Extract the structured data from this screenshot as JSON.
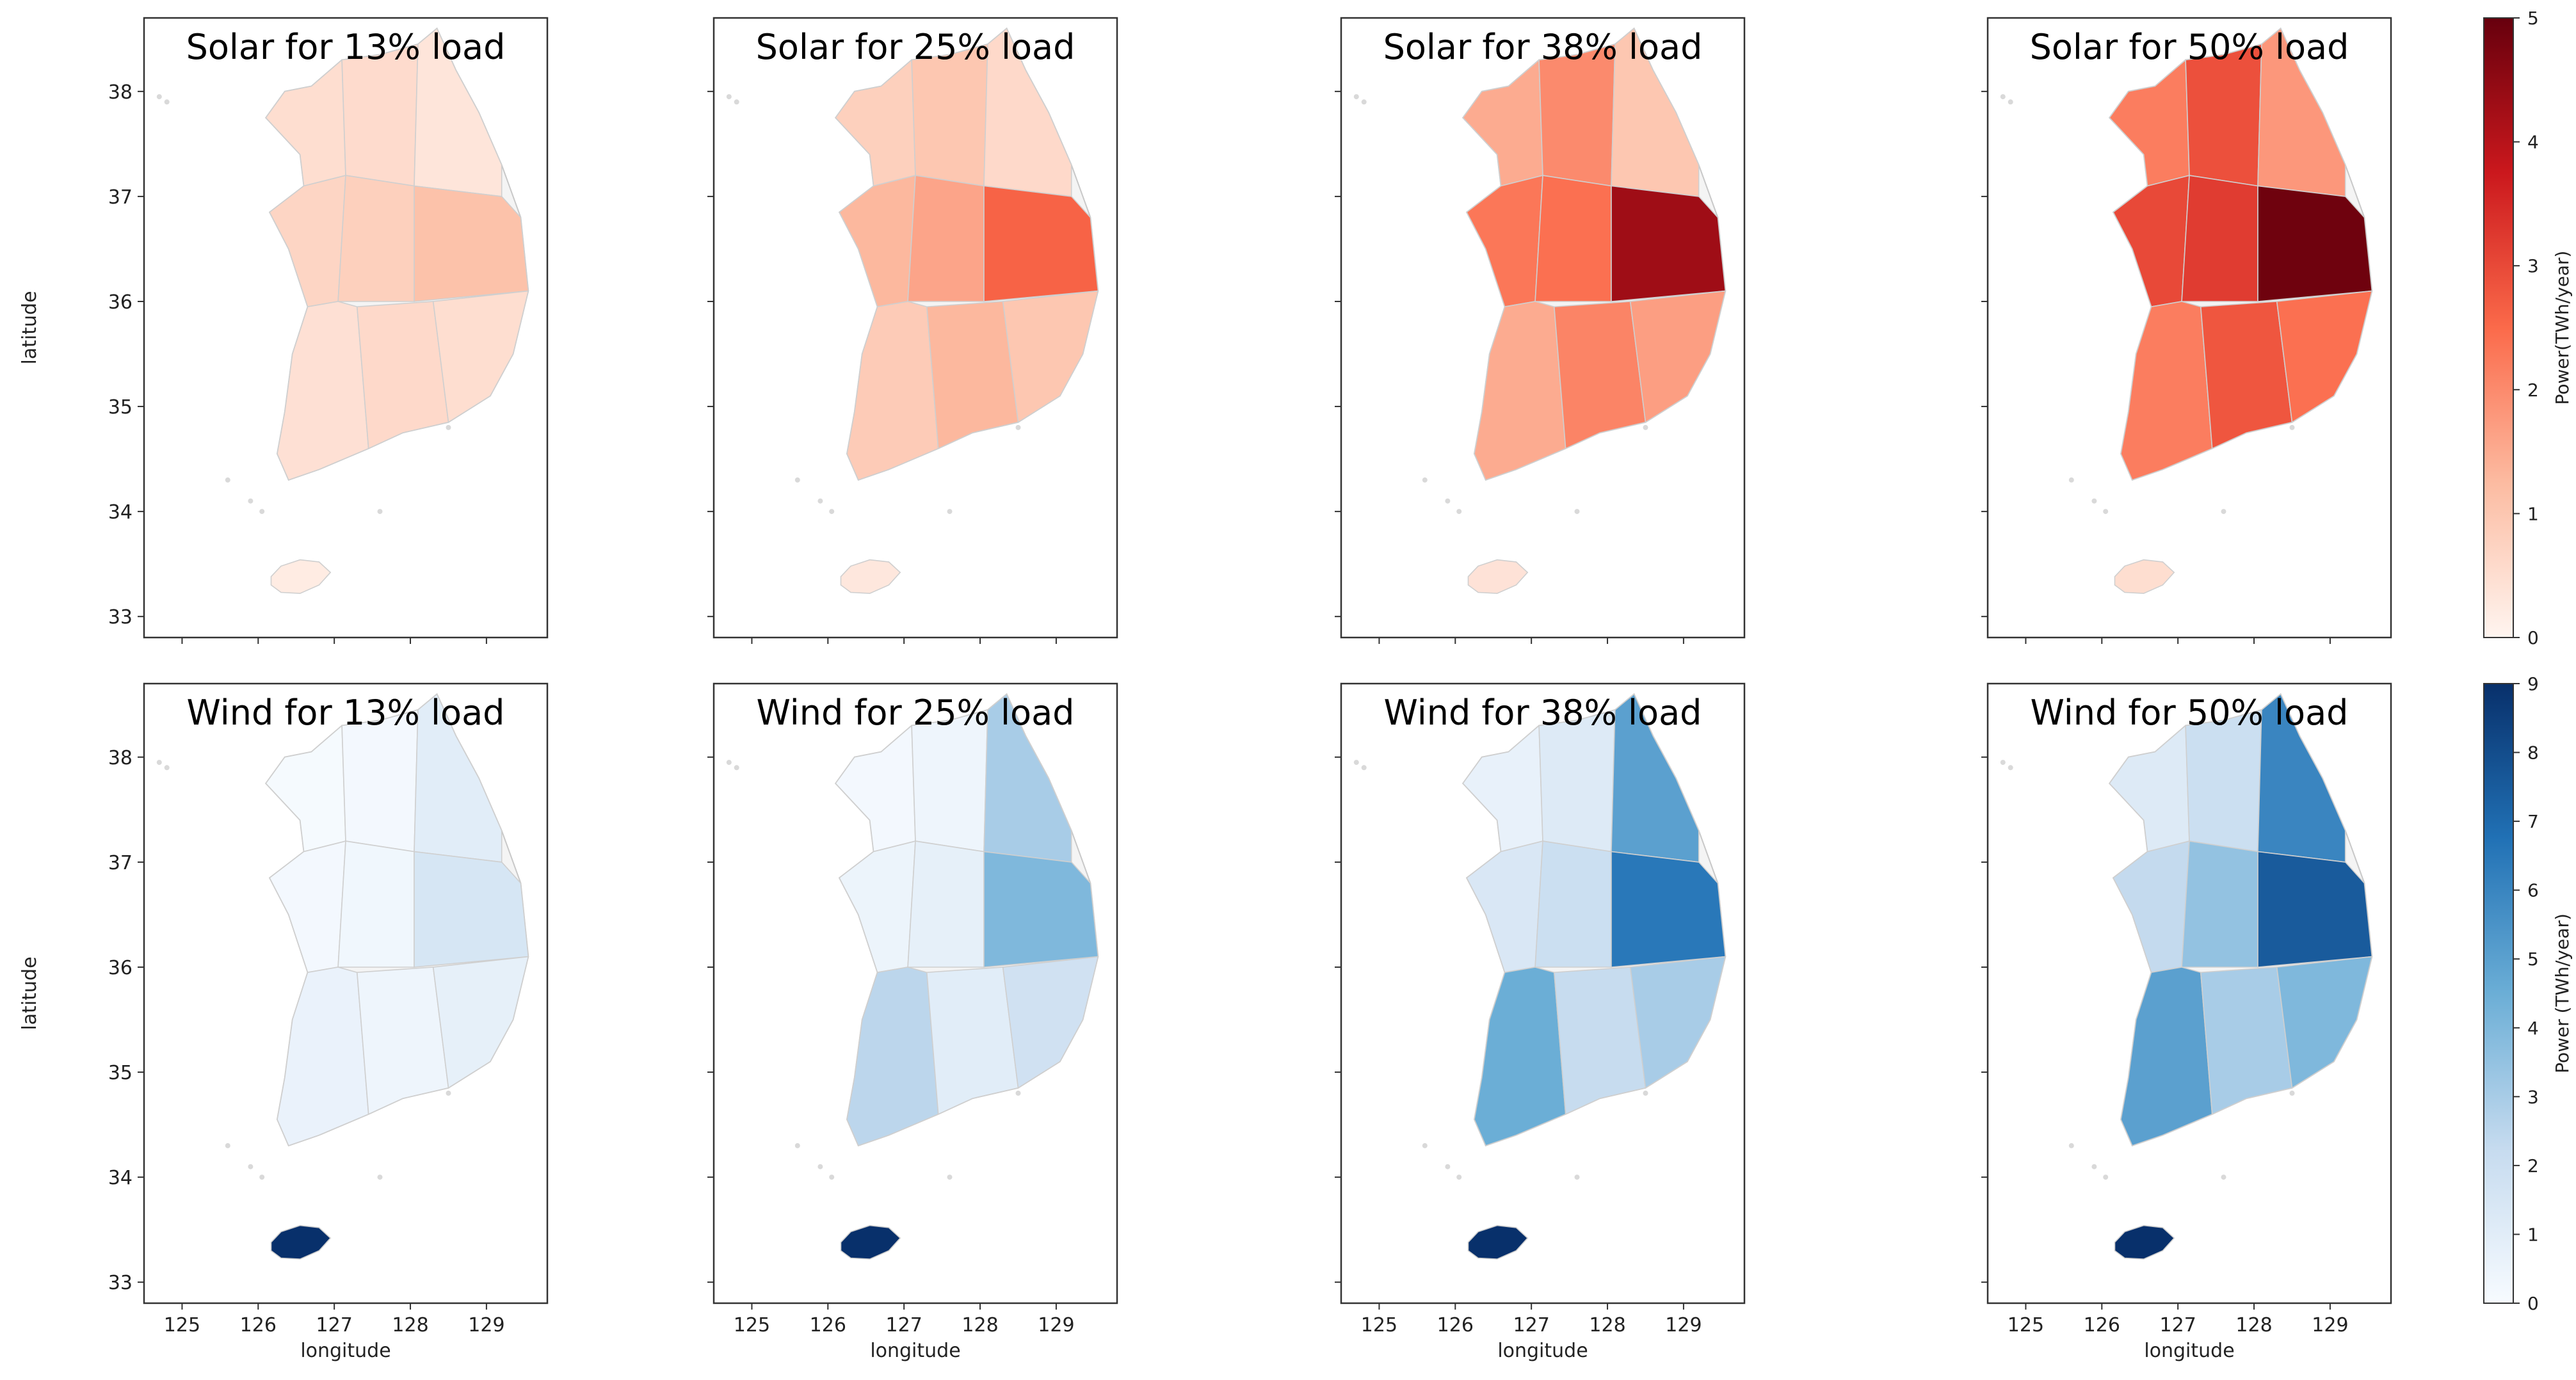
{
  "figure": {
    "rows": [
      {
        "variable": "solar",
        "colorbar": {
          "label": "Power(TWh/year)",
          "min": 0,
          "max": 5,
          "ticks": [
            "0",
            "1",
            "2",
            "3",
            "4",
            "5"
          ],
          "colors": [
            "#fff5f0",
            "#fcbba1",
            "#fb6a4a",
            "#cb181d",
            "#67000d"
          ]
        }
      },
      {
        "variable": "wind",
        "colorbar": {
          "label": "Power (TWh/year)",
          "min": 0,
          "max": 9,
          "ticks": [
            "0",
            "1",
            "2",
            "3",
            "4",
            "5",
            "6",
            "7",
            "8",
            "9"
          ],
          "colors": [
            "#f7fbff",
            "#c6dbef",
            "#6baed6",
            "#2171b5",
            "#08306b"
          ]
        }
      }
    ]
  },
  "chart_data": [
    {
      "type": "choropleth",
      "title": "Solar for 13% load",
      "ylabel": "latitude",
      "xlabel": "",
      "xlim": [
        124.5,
        129.8
      ],
      "ylim": [
        32.8,
        38.7
      ],
      "xticks": [
        "125",
        "126",
        "127",
        "128",
        "129"
      ],
      "yticks": [
        "33",
        "34",
        "35",
        "36",
        "37",
        "38"
      ],
      "regions": [
        {
          "name": "northwest",
          "lon": 126.8,
          "lat": 37.5,
          "value": 0.5
        },
        {
          "name": "north-central",
          "lon": 127.7,
          "lat": 37.6,
          "value": 0.55
        },
        {
          "name": "northeast",
          "lon": 128.5,
          "lat": 37.5,
          "value": 0.35
        },
        {
          "name": "west-central",
          "lon": 126.8,
          "lat": 36.6,
          "value": 0.7
        },
        {
          "name": "central",
          "lon": 127.6,
          "lat": 36.6,
          "value": 0.8
        },
        {
          "name": "east-central",
          "lon": 128.7,
          "lat": 36.4,
          "value": 1.1
        },
        {
          "name": "southwest",
          "lon": 126.8,
          "lat": 35.3,
          "value": 0.45
        },
        {
          "name": "south-central",
          "lon": 127.8,
          "lat": 35.4,
          "value": 0.6
        },
        {
          "name": "southeast",
          "lon": 128.8,
          "lat": 35.6,
          "value": 0.5
        },
        {
          "name": "jeju",
          "lon": 126.55,
          "lat": 33.38,
          "value": 0.2
        }
      ]
    },
    {
      "type": "choropleth",
      "title": "Solar for 25% load",
      "ylabel": "",
      "xlabel": "",
      "xlim": [
        124.5,
        129.8
      ],
      "ylim": [
        32.8,
        38.7
      ],
      "xticks": [
        "125",
        "126",
        "127",
        "128",
        "129"
      ],
      "yticks": [
        "33",
        "34",
        "35",
        "36",
        "37",
        "38"
      ],
      "regions": [
        {
          "name": "northwest",
          "lon": 126.8,
          "lat": 37.5,
          "value": 0.8
        },
        {
          "name": "north-central",
          "lon": 127.7,
          "lat": 37.6,
          "value": 1.0
        },
        {
          "name": "northeast",
          "lon": 128.5,
          "lat": 37.5,
          "value": 0.6
        },
        {
          "name": "west-central",
          "lon": 126.8,
          "lat": 36.6,
          "value": 1.3
        },
        {
          "name": "central",
          "lon": 127.6,
          "lat": 36.6,
          "value": 1.6
        },
        {
          "name": "east-central",
          "lon": 128.7,
          "lat": 36.4,
          "value": 2.6
        },
        {
          "name": "southwest",
          "lon": 126.8,
          "lat": 35.3,
          "value": 0.9
        },
        {
          "name": "south-central",
          "lon": 127.8,
          "lat": 35.4,
          "value": 1.3
        },
        {
          "name": "southeast",
          "lon": 128.8,
          "lat": 35.6,
          "value": 1.0
        },
        {
          "name": "jeju",
          "lon": 126.55,
          "lat": 33.38,
          "value": 0.3
        }
      ]
    },
    {
      "type": "choropleth",
      "title": "Solar for 38% load",
      "ylabel": "",
      "xlabel": "",
      "xlim": [
        124.5,
        129.8
      ],
      "ylim": [
        32.8,
        38.7
      ],
      "xticks": [
        "125",
        "126",
        "127",
        "128",
        "129"
      ],
      "yticks": [
        "33",
        "34",
        "35",
        "36",
        "37",
        "38"
      ],
      "regions": [
        {
          "name": "northwest",
          "lon": 126.8,
          "lat": 37.5,
          "value": 1.5
        },
        {
          "name": "north-central",
          "lon": 127.7,
          "lat": 37.6,
          "value": 2.0
        },
        {
          "name": "northeast",
          "lon": 128.5,
          "lat": 37.5,
          "value": 1.0
        },
        {
          "name": "west-central",
          "lon": 126.8,
          "lat": 36.6,
          "value": 2.3
        },
        {
          "name": "central",
          "lon": 127.6,
          "lat": 36.6,
          "value": 2.4
        },
        {
          "name": "east-central",
          "lon": 128.7,
          "lat": 36.4,
          "value": 4.3
        },
        {
          "name": "southwest",
          "lon": 126.8,
          "lat": 35.3,
          "value": 1.5
        },
        {
          "name": "south-central",
          "lon": 127.8,
          "lat": 35.4,
          "value": 2.1
        },
        {
          "name": "southeast",
          "lon": 128.8,
          "lat": 35.6,
          "value": 1.7
        },
        {
          "name": "jeju",
          "lon": 126.55,
          "lat": 33.38,
          "value": 0.4
        }
      ]
    },
    {
      "type": "choropleth",
      "title": "Solar for 50% load",
      "ylabel": "",
      "xlabel": "",
      "xlim": [
        124.5,
        129.8
      ],
      "ylim": [
        32.8,
        38.7
      ],
      "xticks": [
        "125",
        "126",
        "127",
        "128",
        "129"
      ],
      "yticks": [
        "33",
        "34",
        "35",
        "36",
        "37",
        "38"
      ],
      "regions": [
        {
          "name": "northwest",
          "lon": 126.8,
          "lat": 37.5,
          "value": 2.2
        },
        {
          "name": "north-central",
          "lon": 127.7,
          "lat": 37.6,
          "value": 2.9
        },
        {
          "name": "northeast",
          "lon": 128.5,
          "lat": 37.5,
          "value": 1.8
        },
        {
          "name": "west-central",
          "lon": 126.8,
          "lat": 36.6,
          "value": 3.0
        },
        {
          "name": "central",
          "lon": 127.6,
          "lat": 36.6,
          "value": 3.2
        },
        {
          "name": "east-central",
          "lon": 128.7,
          "lat": 36.4,
          "value": 4.9
        },
        {
          "name": "southwest",
          "lon": 126.8,
          "lat": 35.3,
          "value": 2.2
        },
        {
          "name": "south-central",
          "lon": 127.8,
          "lat": 35.4,
          "value": 2.8
        },
        {
          "name": "southeast",
          "lon": 128.8,
          "lat": 35.6,
          "value": 2.4
        },
        {
          "name": "jeju",
          "lon": 126.55,
          "lat": 33.38,
          "value": 0.5
        }
      ]
    },
    {
      "type": "choropleth",
      "title": "Wind for 13% load",
      "ylabel": "latitude",
      "xlabel": "longitude",
      "xlim": [
        124.5,
        129.8
      ],
      "ylim": [
        32.8,
        38.7
      ],
      "xticks": [
        "125",
        "126",
        "127",
        "128",
        "129"
      ],
      "yticks": [
        "33",
        "34",
        "35",
        "36",
        "37",
        "38"
      ],
      "regions": [
        {
          "name": "northwest",
          "lon": 126.8,
          "lat": 37.5,
          "value": 0.1
        },
        {
          "name": "north-central",
          "lon": 127.7,
          "lat": 37.6,
          "value": 0.2
        },
        {
          "name": "northeast",
          "lon": 128.5,
          "lat": 37.5,
          "value": 1.0
        },
        {
          "name": "west-central",
          "lon": 126.8,
          "lat": 36.6,
          "value": 0.2
        },
        {
          "name": "central",
          "lon": 127.6,
          "lat": 36.6,
          "value": 0.3
        },
        {
          "name": "east-central",
          "lon": 128.7,
          "lat": 36.4,
          "value": 1.5
        },
        {
          "name": "southwest",
          "lon": 126.8,
          "lat": 35.3,
          "value": 0.6
        },
        {
          "name": "south-central",
          "lon": 127.8,
          "lat": 35.4,
          "value": 0.4
        },
        {
          "name": "southeast",
          "lon": 128.8,
          "lat": 35.6,
          "value": 0.8
        },
        {
          "name": "jeju",
          "lon": 126.55,
          "lat": 33.38,
          "value": 9
        }
      ]
    },
    {
      "type": "choropleth",
      "title": "Wind for 25% load",
      "ylabel": "",
      "xlabel": "longitude",
      "xlim": [
        124.5,
        129.8
      ],
      "ylim": [
        32.8,
        38.7
      ],
      "xticks": [
        "125",
        "126",
        "127",
        "128",
        "129"
      ],
      "yticks": [
        "33",
        "34",
        "35",
        "36",
        "37",
        "38"
      ],
      "regions": [
        {
          "name": "northwest",
          "lon": 126.8,
          "lat": 37.5,
          "value": 0.2
        },
        {
          "name": "north-central",
          "lon": 127.7,
          "lat": 37.6,
          "value": 0.4
        },
        {
          "name": "northeast",
          "lon": 128.5,
          "lat": 37.5,
          "value": 3.0
        },
        {
          "name": "west-central",
          "lon": 126.8,
          "lat": 36.6,
          "value": 0.5
        },
        {
          "name": "central",
          "lon": 127.6,
          "lat": 36.6,
          "value": 0.8
        },
        {
          "name": "east-central",
          "lon": 128.7,
          "lat": 36.4,
          "value": 4.0
        },
        {
          "name": "southwest",
          "lon": 126.8,
          "lat": 35.3,
          "value": 2.5
        },
        {
          "name": "south-central",
          "lon": 127.8,
          "lat": 35.4,
          "value": 1.0
        },
        {
          "name": "southeast",
          "lon": 128.8,
          "lat": 35.6,
          "value": 1.8
        },
        {
          "name": "jeju",
          "lon": 126.55,
          "lat": 33.38,
          "value": 9
        }
      ]
    },
    {
      "type": "choropleth",
      "title": "Wind for 38% load",
      "ylabel": "",
      "xlabel": "longitude",
      "xlim": [
        124.5,
        129.8
      ],
      "ylim": [
        32.8,
        38.7
      ],
      "xticks": [
        "125",
        "126",
        "127",
        "128",
        "129"
      ],
      "yticks": [
        "33",
        "34",
        "35",
        "36",
        "37",
        "38"
      ],
      "regions": [
        {
          "name": "northwest",
          "lon": 126.8,
          "lat": 37.5,
          "value": 0.7
        },
        {
          "name": "north-central",
          "lon": 127.7,
          "lat": 37.6,
          "value": 1.2
        },
        {
          "name": "northeast",
          "lon": 128.5,
          "lat": 37.5,
          "value": 5.0
        },
        {
          "name": "west-central",
          "lon": 126.8,
          "lat": 36.6,
          "value": 1.4
        },
        {
          "name": "central",
          "lon": 127.6,
          "lat": 36.6,
          "value": 2.0
        },
        {
          "name": "east-central",
          "lon": 128.7,
          "lat": 36.4,
          "value": 6.5
        },
        {
          "name": "southwest",
          "lon": 126.8,
          "lat": 35.3,
          "value": 4.5
        },
        {
          "name": "south-central",
          "lon": 127.8,
          "lat": 35.4,
          "value": 2.2
        },
        {
          "name": "southeast",
          "lon": 128.8,
          "lat": 35.6,
          "value": 3.0
        },
        {
          "name": "jeju",
          "lon": 126.55,
          "lat": 33.38,
          "value": 9
        }
      ]
    },
    {
      "type": "choropleth",
      "title": "Wind for 50% load",
      "ylabel": "",
      "xlabel": "longitude",
      "xlim": [
        124.5,
        129.8
      ],
      "ylim": [
        32.8,
        38.7
      ],
      "xticks": [
        "125",
        "126",
        "127",
        "128",
        "129"
      ],
      "yticks": [
        "33",
        "34",
        "35",
        "36",
        "37",
        "38"
      ],
      "regions": [
        {
          "name": "northwest",
          "lon": 126.8,
          "lat": 37.5,
          "value": 1.2
        },
        {
          "name": "north-central",
          "lon": 127.7,
          "lat": 37.6,
          "value": 2.0
        },
        {
          "name": "northeast",
          "lon": 128.5,
          "lat": 37.5,
          "value": 6.0
        },
        {
          "name": "west-central",
          "lon": 126.8,
          "lat": 36.6,
          "value": 2.3
        },
        {
          "name": "central",
          "lon": 127.6,
          "lat": 36.6,
          "value": 3.5
        },
        {
          "name": "east-central",
          "lon": 128.7,
          "lat": 36.4,
          "value": 7.5
        },
        {
          "name": "southwest",
          "lon": 126.8,
          "lat": 35.3,
          "value": 5.0
        },
        {
          "name": "south-central",
          "lon": 127.8,
          "lat": 35.4,
          "value": 3.0
        },
        {
          "name": "southeast",
          "lon": 128.8,
          "lat": 35.6,
          "value": 4.0
        },
        {
          "name": "jeju",
          "lon": 126.55,
          "lat": 33.38,
          "value": 9
        }
      ]
    }
  ]
}
